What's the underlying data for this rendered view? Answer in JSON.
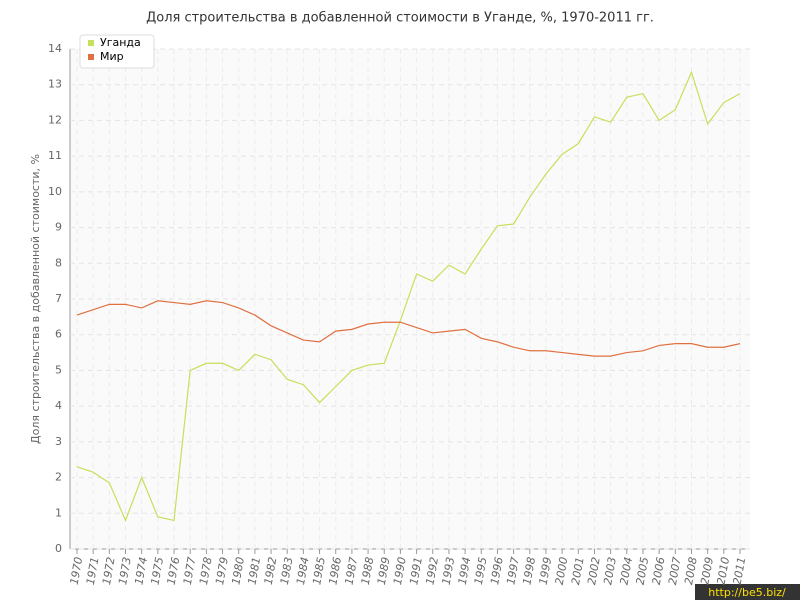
{
  "chart_data": {
    "type": "line",
    "title": "Доля строительства в добавленной стоимости в Уганде, %, 1970-2011 гг.",
    "y_label": "Доля строительства в добавленной стоимости, %",
    "categories": [
      "1970",
      "1971",
      "1972",
      "1973",
      "1974",
      "1975",
      "1976",
      "1977",
      "1978",
      "1979",
      "1980",
      "1981",
      "1982",
      "1983",
      "1984",
      "1985",
      "1986",
      "1987",
      "1988",
      "1989",
      "1990",
      "1991",
      "1992",
      "1993",
      "1994",
      "1995",
      "1996",
      "1997",
      "1998",
      "1999",
      "2000",
      "2001",
      "2002",
      "2003",
      "2004",
      "2005",
      "2006",
      "2007",
      "2008",
      "2009",
      "2010",
      "2011"
    ],
    "series": [
      {
        "name": "Уганда",
        "color": "#c5e05a",
        "values": [
          2.3,
          2.15,
          1.85,
          0.8,
          2.0,
          0.9,
          0.8,
          5.0,
          5.2,
          5.2,
          5.0,
          5.45,
          5.3,
          4.75,
          4.6,
          4.1,
          4.55,
          5.0,
          5.15,
          5.2,
          6.4,
          7.7,
          7.5,
          7.95,
          7.7,
          8.4,
          9.05,
          9.1,
          9.85,
          10.5,
          11.05,
          11.35,
          12.1,
          11.95,
          12.65,
          12.75,
          12.0,
          12.3,
          13.35,
          11.9,
          12.5,
          12.75
        ]
      },
      {
        "name": "Мир",
        "color": "#e07040",
        "values": [
          6.55,
          6.7,
          6.85,
          6.85,
          6.75,
          6.95,
          6.9,
          6.85,
          6.95,
          6.9,
          6.75,
          6.55,
          6.25,
          6.05,
          5.85,
          5.8,
          6.1,
          6.15,
          6.3,
          6.35,
          6.35,
          6.2,
          6.05,
          6.1,
          6.15,
          5.9,
          5.8,
          5.65,
          5.55,
          5.55,
          5.5,
          5.45,
          5.4,
          5.4,
          5.5,
          5.55,
          5.7,
          5.75,
          5.75,
          5.65,
          5.65,
          5.75
        ]
      }
    ],
    "ylim": [
      0,
      14
    ],
    "yticks": [
      0,
      1,
      2,
      3,
      4,
      5,
      6,
      7,
      8,
      9,
      10,
      11,
      12,
      13,
      14
    ],
    "grid": true,
    "legend": "top-left",
    "watermark": "http://be5.biz/"
  }
}
